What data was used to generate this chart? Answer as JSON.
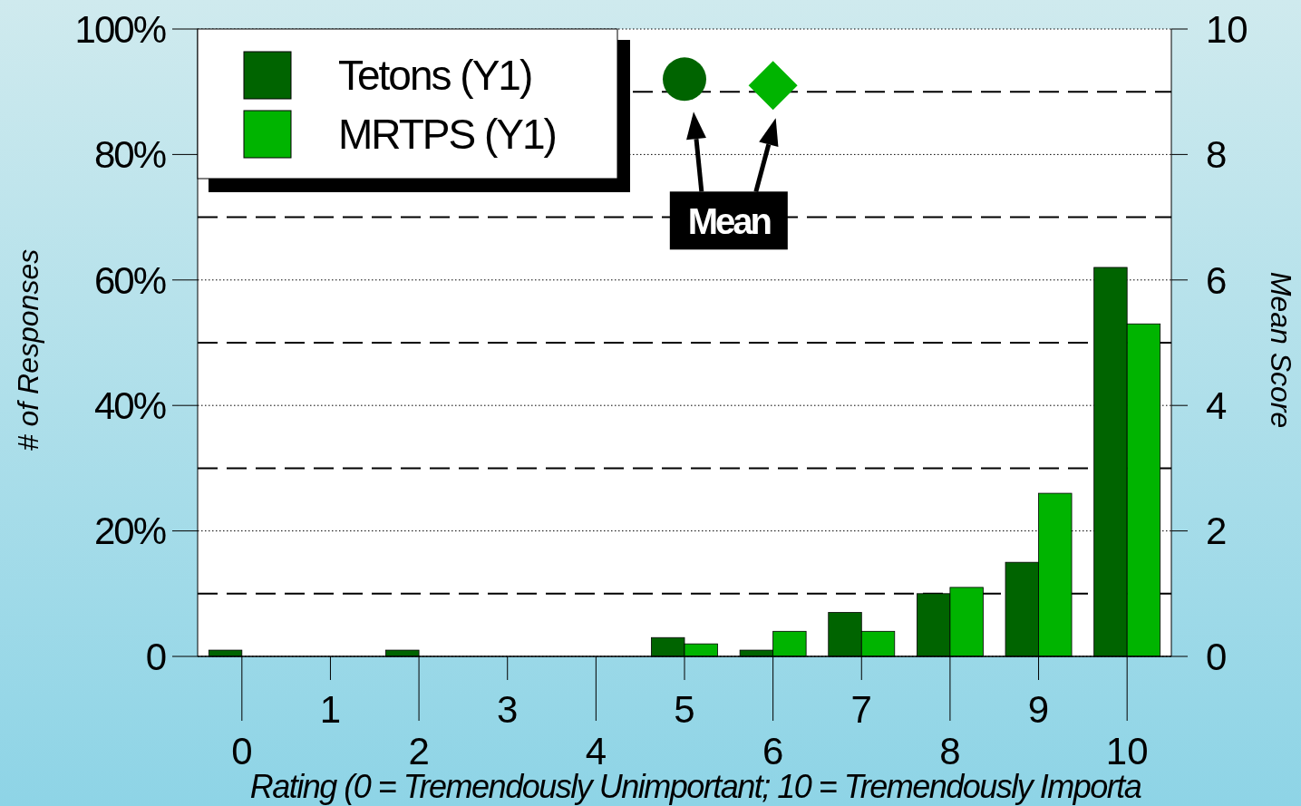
{
  "chart_data": {
    "type": "bar",
    "categories": [
      "0",
      "1",
      "2",
      "3",
      "4",
      "5",
      "6",
      "7",
      "8",
      "9",
      "10"
    ],
    "series": [
      {
        "name": "Tetons (Y1)",
        "color": "#006400",
        "values": [
          1,
          0,
          1,
          0,
          0,
          3,
          1,
          7,
          10,
          15,
          62
        ]
      },
      {
        "name": "MRTPS (Y1)",
        "color": "#00b400",
        "values": [
          0,
          0,
          0,
          0,
          0,
          2,
          4,
          4,
          11,
          26,
          53
        ]
      },
      {
        "type": "scatter",
        "axis": "y2",
        "marker": "circle",
        "color": "#006400",
        "x": [
          "5"
        ],
        "values": [
          9.2
        ]
      },
      {
        "type": "scatter",
        "axis": "y2",
        "marker": "diamond",
        "color": "#00b400",
        "x": [
          "6"
        ],
        "values": [
          9.1
        ]
      }
    ],
    "xlabel": "Rating (0 = Tremendously Unimportant; 10 = Tremendously Importa",
    "ylabel": "# of Responses",
    "y2label": "Mean Score",
    "ylim": [
      0,
      100
    ],
    "yticks": [
      0,
      {
        "value": 20,
        "label": "20%"
      },
      {
        "value": 40,
        "label": "40%"
      },
      {
        "value": 60,
        "label": "60%"
      },
      {
        "value": 80,
        "label": "80%"
      },
      {
        "value": 100,
        "label": "100%"
      }
    ],
    "y2lim": [
      0,
      10
    ],
    "y2ticks": [
      0,
      2,
      4,
      6,
      8,
      10
    ],
    "ref_lines": [
      {
        "axis": "y",
        "value": 10,
        "line_style": "dashed"
      },
      {
        "axis": "y",
        "value": 30,
        "line_style": "dashed"
      },
      {
        "axis": "y",
        "value": 50,
        "line_style": "dashed"
      },
      {
        "axis": "y",
        "value": 70,
        "line_style": "dashed"
      },
      {
        "axis": "y",
        "value": 90,
        "line_style": "dashed"
      }
    ],
    "annotations": [
      "Mean"
    ],
    "grid": "y",
    "legend": "top left"
  }
}
